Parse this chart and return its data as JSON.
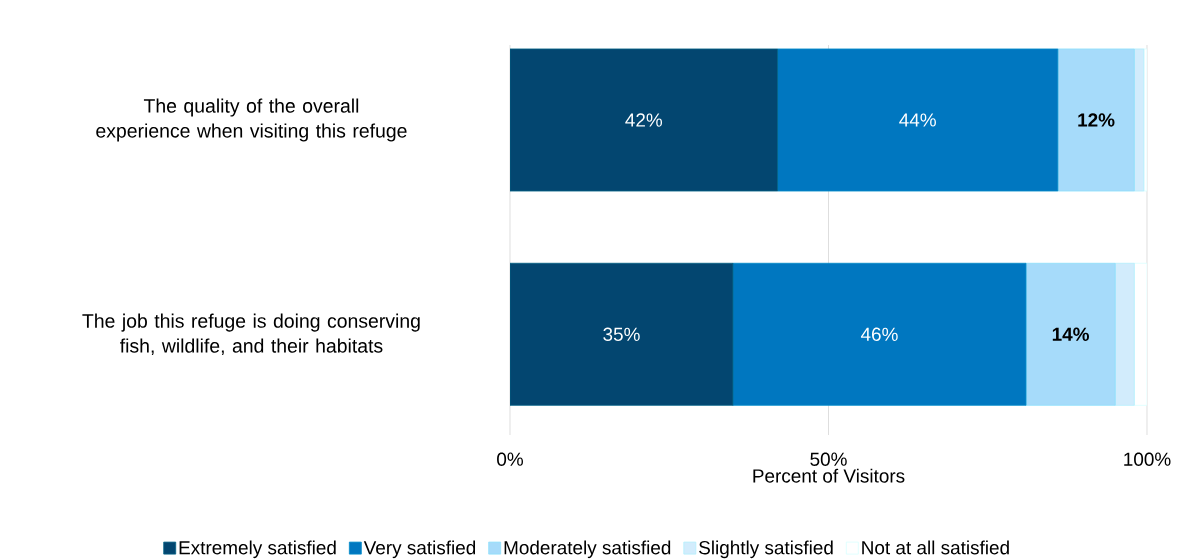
{
  "chart_data": {
    "type": "bar",
    "orientation": "horizontal",
    "stacked": true,
    "categories": [
      "The quality of the overall experience when visiting this refuge",
      "The job this refuge is doing conserving fish, wildlife, and their habitats"
    ],
    "series": [
      {
        "name": "Extremely satisfied",
        "color": "#034670",
        "values": [
          42,
          35
        ],
        "value_labels": [
          "42%",
          "35%"
        ]
      },
      {
        "name": "Very satisfied",
        "color": "#0077c0",
        "values": [
          44,
          46
        ],
        "value_labels": [
          "44%",
          "46%"
        ]
      },
      {
        "name": "Moderately satisfied",
        "color": "#a6dbfa",
        "values": [
          12,
          14
        ],
        "value_labels": [
          "12%",
          "14%"
        ]
      },
      {
        "name": "Slightly satisfied",
        "color": "#d2ecfc",
        "values": [
          1.5,
          3
        ],
        "value_labels": [
          null,
          null
        ]
      },
      {
        "name": "Not at all satisfied",
        "color": "#ffffff",
        "values": [
          0.5,
          2
        ],
        "value_labels": [
          null,
          null
        ]
      }
    ],
    "xlim": [
      0,
      100
    ],
    "xticks": [
      {
        "value": 0,
        "label": "0%"
      },
      {
        "value": 50,
        "label": "50%"
      },
      {
        "value": 100,
        "label": "100%"
      }
    ],
    "xlabel": "Percent of Visitors",
    "grid": "x",
    "legend": "bottom"
  }
}
